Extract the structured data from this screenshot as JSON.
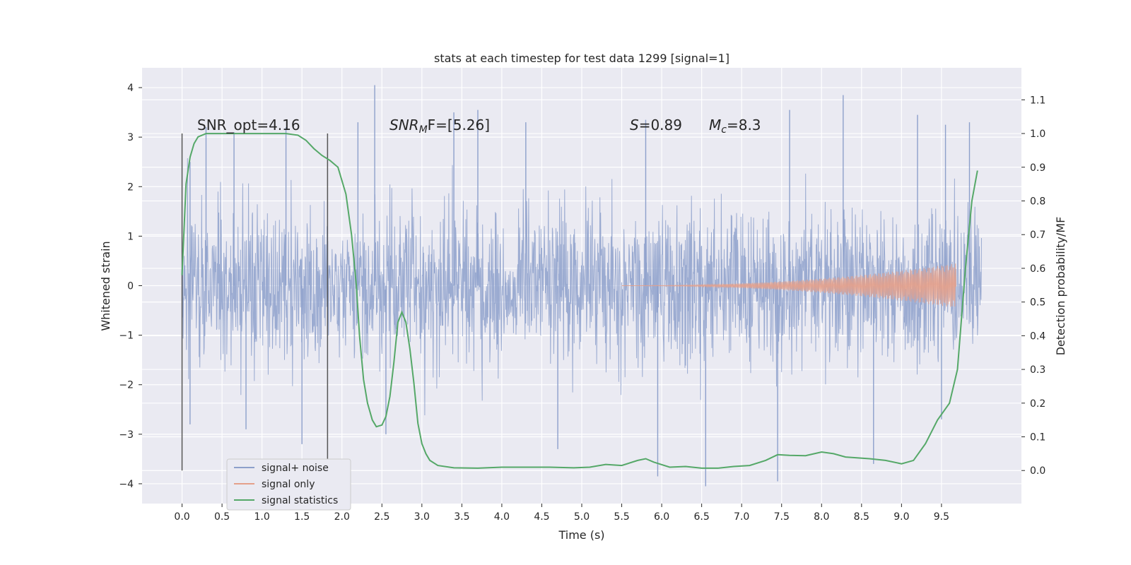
{
  "chart_data": {
    "type": "line",
    "title": "stats at each timestep for test data 1299 [signal=1]",
    "xlabel": "Time (s)",
    "ylabel": "Whitened strain",
    "y2label": "Detection probability/MF",
    "xlim": [
      -0.5,
      10.5
    ],
    "ylim": [
      -4.4,
      4.4
    ],
    "y2lim": [
      -0.098,
      1.195
    ],
    "x_ticks": [
      "0.0",
      "0.5",
      "1.0",
      "1.5",
      "2.0",
      "2.5",
      "3.0",
      "3.5",
      "4.0",
      "4.5",
      "5.0",
      "5.5",
      "6.0",
      "6.5",
      "7.0",
      "7.5",
      "8.0",
      "8.5",
      "9.0",
      "9.5"
    ],
    "y_ticks": [
      "4",
      "3",
      "2",
      "1",
      "0",
      "−1",
      "−2",
      "−3",
      "−4"
    ],
    "y2_ticks": [
      "1.1",
      "1.0",
      "0.9",
      "0.8",
      "0.7",
      "0.6",
      "0.5",
      "0.4",
      "0.3",
      "0.2",
      "0.1",
      "0.0"
    ],
    "grid": true,
    "legend_position": "lower-left",
    "annotations": {
      "snr_opt": "SNR_opt=4.16",
      "snr_mf_base": "SNR",
      "snr_mf_sub": "M",
      "snr_mf_tail": "F=[5.26]",
      "s_sym": "S",
      "s_val": "=0.89",
      "mc_sym": "M",
      "mc_sub": "c",
      "mc_val": "=8.3"
    },
    "vertical_lines_x": [
      0.0,
      1.82
    ],
    "series": [
      {
        "name": "signal+ noise",
        "color": "#8da0cb",
        "x_range": [
          0.0,
          10.0
        ],
        "band_typical": [
          -1.3,
          1.3
        ],
        "peaks": [
          {
            "x": 0.1,
            "y": 2.5
          },
          {
            "x": 0.3,
            "y": 3.2
          },
          {
            "x": 0.65,
            "y": 3.1
          },
          {
            "x": 1.3,
            "y": 3.2
          },
          {
            "x": 2.2,
            "y": 3.3
          },
          {
            "x": 2.41,
            "y": 4.05
          },
          {
            "x": 3.4,
            "y": 3.5
          },
          {
            "x": 3.7,
            "y": 3.55
          },
          {
            "x": 4.3,
            "y": 3.3
          },
          {
            "x": 5.8,
            "y": 3.35
          },
          {
            "x": 7.6,
            "y": 3.55
          },
          {
            "x": 8.27,
            "y": 3.85
          },
          {
            "x": 9.2,
            "y": 3.45
          },
          {
            "x": 9.55,
            "y": 3.25
          },
          {
            "x": 9.85,
            "y": 3.3
          }
        ],
        "troughs": [
          {
            "x": 0.1,
            "y": -2.8
          },
          {
            "x": 0.8,
            "y": -2.9
          },
          {
            "x": 1.5,
            "y": -3.2
          },
          {
            "x": 2.55,
            "y": -3.0
          },
          {
            "x": 4.7,
            "y": -3.3
          },
          {
            "x": 5.95,
            "y": -3.85
          },
          {
            "x": 6.55,
            "y": -4.05
          },
          {
            "x": 7.45,
            "y": -3.95
          },
          {
            "x": 8.65,
            "y": -3.6
          },
          {
            "x": 9.5,
            "y": -2.7
          }
        ]
      },
      {
        "name": "signal only",
        "color": "#e5a08a",
        "x_range": [
          5.5,
          9.68
        ],
        "amplitude_end": 0.45
      },
      {
        "name": "signal statistics",
        "color": "#55a868",
        "axis": "right",
        "points": [
          [
            0.0,
            0.58
          ],
          [
            0.05,
            0.85
          ],
          [
            0.1,
            0.93
          ],
          [
            0.15,
            0.97
          ],
          [
            0.2,
            0.99
          ],
          [
            0.3,
            1.0
          ],
          [
            0.5,
            1.0
          ],
          [
            1.0,
            1.0
          ],
          [
            1.3,
            1.0
          ],
          [
            1.45,
            0.995
          ],
          [
            1.55,
            0.98
          ],
          [
            1.65,
            0.955
          ],
          [
            1.75,
            0.935
          ],
          [
            1.85,
            0.92
          ],
          [
            1.95,
            0.9
          ],
          [
            2.05,
            0.82
          ],
          [
            2.12,
            0.7
          ],
          [
            2.18,
            0.55
          ],
          [
            2.22,
            0.4
          ],
          [
            2.27,
            0.27
          ],
          [
            2.32,
            0.2
          ],
          [
            2.38,
            0.15
          ],
          [
            2.43,
            0.13
          ],
          [
            2.5,
            0.135
          ],
          [
            2.55,
            0.16
          ],
          [
            2.6,
            0.22
          ],
          [
            2.65,
            0.32
          ],
          [
            2.7,
            0.44
          ],
          [
            2.75,
            0.47
          ],
          [
            2.8,
            0.44
          ],
          [
            2.85,
            0.36
          ],
          [
            2.9,
            0.26
          ],
          [
            2.95,
            0.14
          ],
          [
            3.0,
            0.08
          ],
          [
            3.05,
            0.05
          ],
          [
            3.1,
            0.03
          ],
          [
            3.2,
            0.015
          ],
          [
            3.4,
            0.008
          ],
          [
            3.7,
            0.007
          ],
          [
            4.0,
            0.01
          ],
          [
            4.3,
            0.01
          ],
          [
            4.6,
            0.01
          ],
          [
            4.9,
            0.008
          ],
          [
            5.1,
            0.01
          ],
          [
            5.3,
            0.018
          ],
          [
            5.5,
            0.015
          ],
          [
            5.7,
            0.03
          ],
          [
            5.8,
            0.035
          ],
          [
            5.9,
            0.025
          ],
          [
            6.1,
            0.01
          ],
          [
            6.3,
            0.012
          ],
          [
            6.5,
            0.007
          ],
          [
            6.7,
            0.007
          ],
          [
            6.9,
            0.012
          ],
          [
            7.1,
            0.015
          ],
          [
            7.3,
            0.03
          ],
          [
            7.45,
            0.047
          ],
          [
            7.6,
            0.045
          ],
          [
            7.8,
            0.044
          ],
          [
            8.0,
            0.055
          ],
          [
            8.15,
            0.05
          ],
          [
            8.3,
            0.04
          ],
          [
            8.6,
            0.035
          ],
          [
            8.8,
            0.03
          ],
          [
            9.0,
            0.02
          ],
          [
            9.15,
            0.03
          ],
          [
            9.3,
            0.08
          ],
          [
            9.45,
            0.15
          ],
          [
            9.6,
            0.2
          ],
          [
            9.7,
            0.3
          ],
          [
            9.8,
            0.6
          ],
          [
            9.88,
            0.8
          ],
          [
            9.95,
            0.89
          ]
        ]
      }
    ]
  }
}
